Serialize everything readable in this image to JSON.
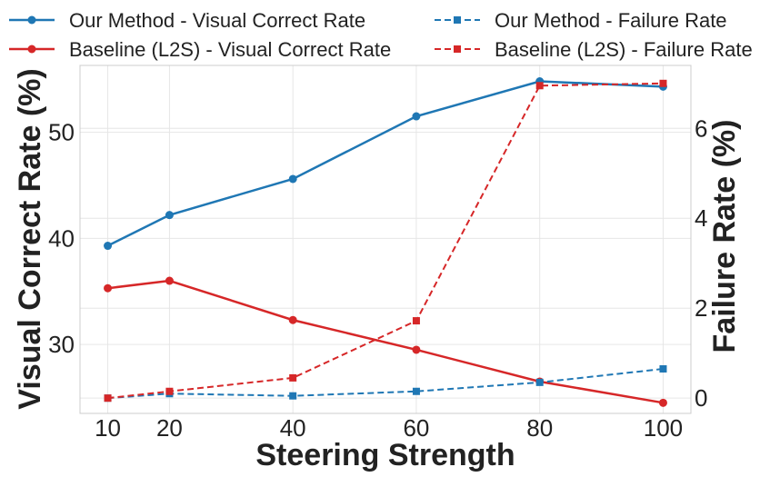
{
  "chart_data": {
    "type": "line",
    "title": "",
    "xlabel": "Steering Strength",
    "ylabel_left": "Visual Correct Rate (%)",
    "ylabel_right": "Failure Rate (%)",
    "x": [
      10,
      20,
      40,
      60,
      80,
      100
    ],
    "x_ticks": [
      10,
      20,
      40,
      60,
      80,
      100
    ],
    "xlim": [
      5.5,
      104.5
    ],
    "ylim_left": [
      23.5,
      56.3
    ],
    "yticks_left": [
      30,
      40,
      50
    ],
    "ylim_right": [
      -0.34,
      7.4
    ],
    "yticks_right": [
      0,
      2,
      4,
      6
    ],
    "grid": true,
    "legend_position": "top, 2 columns",
    "series": [
      {
        "name": "Our Method - Visual Correct Rate",
        "axis": "left",
        "style": "solid",
        "marker": "circle",
        "color": "#1f77b4",
        "values": [
          39.3,
          42.2,
          45.6,
          51.5,
          54.8,
          54.3
        ]
      },
      {
        "name": "Baseline (L2S) - Visual Correct Rate",
        "axis": "left",
        "style": "solid",
        "marker": "circle",
        "color": "#d62728",
        "values": [
          35.3,
          36.0,
          32.3,
          29.5,
          26.5,
          24.5
        ]
      },
      {
        "name": "Our Method - Failure Rate",
        "axis": "right",
        "style": "dashed",
        "marker": "square",
        "color": "#1f77b4",
        "values": [
          0.0,
          0.1,
          0.05,
          0.15,
          0.35,
          0.65
        ]
      },
      {
        "name": "Baseline (L2S) - Failure Rate",
        "axis": "right",
        "style": "dashed",
        "marker": "square",
        "color": "#d62728",
        "values": [
          0.0,
          0.15,
          0.45,
          1.72,
          6.95,
          7.0
        ]
      }
    ]
  }
}
